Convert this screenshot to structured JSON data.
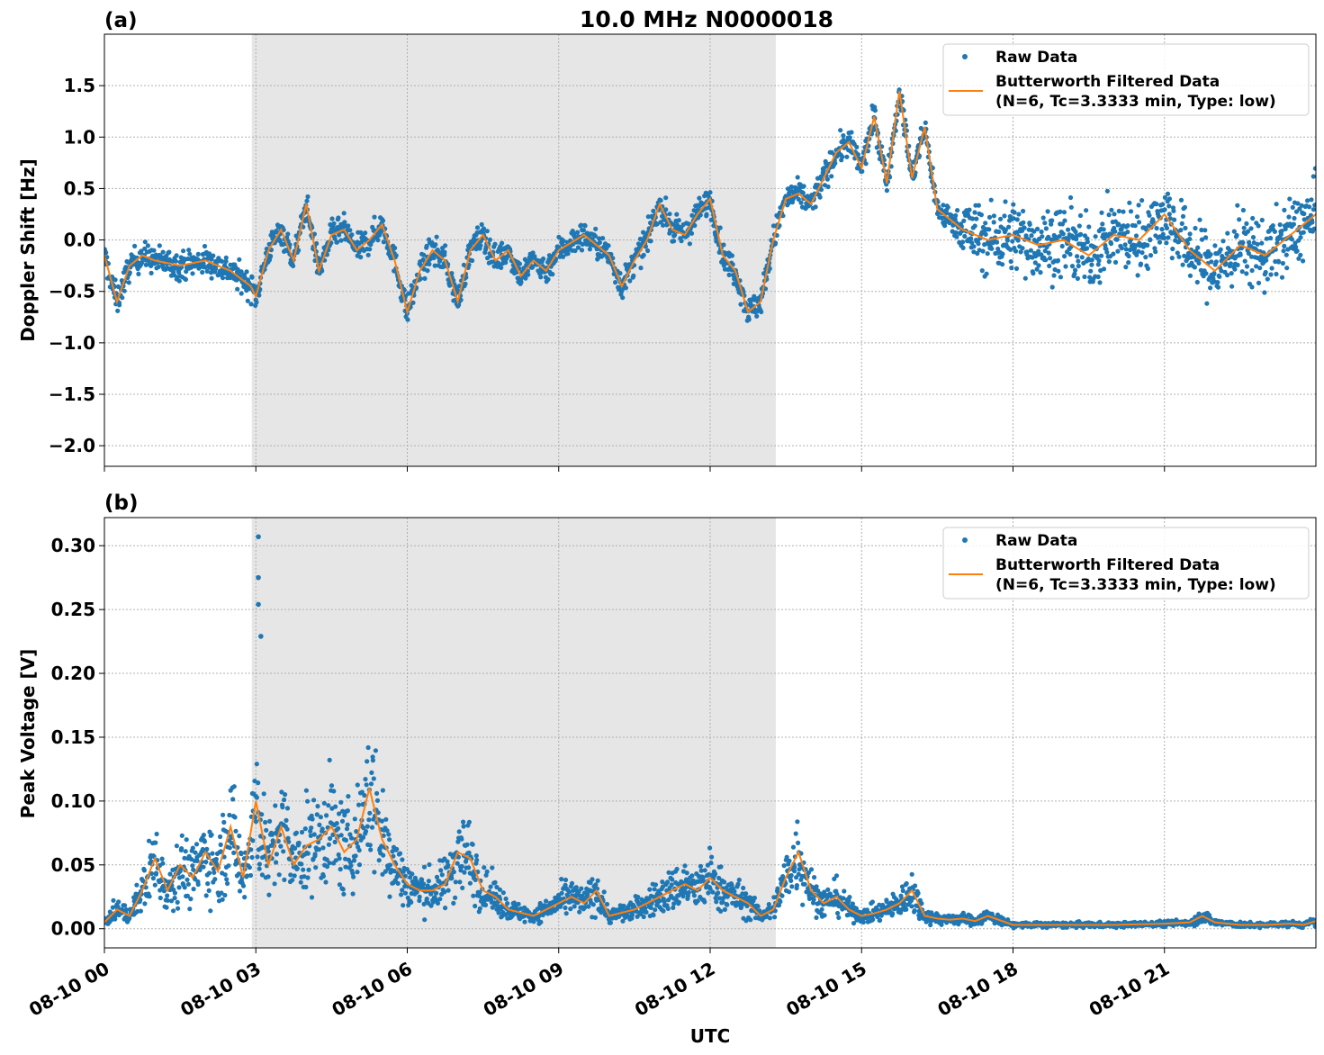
{
  "figure": {
    "title": "10.0 MHz N0000018",
    "xlabel": "UTC",
    "x_tick_labels": [
      "08-10 00",
      "08-10 03",
      "08-10 06",
      "08-10 09",
      "08-10 12",
      "08-10 15",
      "08-10 18",
      "08-10 21"
    ],
    "x_tick_hours": [
      0,
      3,
      6,
      9,
      12,
      15,
      18,
      21
    ],
    "x_range_hours": [
      0,
      24
    ],
    "shaded_interval_hours": [
      2.92,
      13.3
    ],
    "shade_color": "#e6e6e6",
    "raw_color": "#1f77b4",
    "filtered_color": "#ff7f0e"
  },
  "legend": {
    "raw_label": "Raw Data",
    "filtered_label_line1": "Butterworth Filtered Data",
    "filtered_label_line2": "(N=6, Tc=3.3333 min, Type: low)",
    "placement": "top-right"
  },
  "chart_data": [
    {
      "type": "scatter",
      "panel_label": "(a)",
      "ylabel": "Doppler Shift [Hz]",
      "ylim": [
        -2.2,
        2.0
      ],
      "y_ticks": [
        1.5,
        1.0,
        0.5,
        0.0,
        -0.5,
        -1.0,
        -1.5,
        -2.0
      ],
      "y_tick_labels": [
        "1.5",
        "1.0",
        "0.5",
        "0.0",
        "−0.5",
        "−1.0",
        "−1.5",
        "−2.0"
      ],
      "grid": true,
      "series": [
        {
          "name": "Raw Data",
          "kind": "scatter",
          "spread_note_hz": "about ±0.3 Hz before 17 UTC, about ±0.8 Hz after 17 UTC"
        },
        {
          "name": "Butterworth Filtered Data",
          "kind": "line",
          "x": [
            0,
            0.25,
            0.5,
            0.75,
            1.0,
            1.5,
            2.0,
            2.5,
            2.9,
            3.0,
            3.25,
            3.5,
            3.75,
            4.0,
            4.25,
            4.5,
            4.75,
            5.0,
            5.25,
            5.5,
            5.75,
            6.0,
            6.25,
            6.5,
            6.75,
            7.0,
            7.25,
            7.5,
            7.75,
            8.0,
            8.25,
            8.5,
            8.75,
            9.0,
            9.5,
            10.0,
            10.25,
            10.5,
            10.75,
            11.0,
            11.25,
            11.5,
            11.75,
            12.0,
            12.25,
            12.5,
            12.75,
            13.0,
            13.25,
            13.5,
            13.75,
            14.0,
            14.25,
            14.5,
            14.75,
            15.0,
            15.25,
            15.5,
            15.75,
            16.0,
            16.25,
            16.5,
            16.75,
            17.0,
            17.5,
            18.0,
            18.5,
            19.0,
            19.5,
            20.0,
            20.5,
            21.0,
            21.5,
            22.0,
            22.5,
            23.0,
            23.5,
            24.0
          ],
          "y": [
            -0.15,
            -0.6,
            -0.25,
            -0.15,
            -0.2,
            -0.25,
            -0.2,
            -0.3,
            -0.45,
            -0.55,
            -0.1,
            0.1,
            -0.2,
            0.35,
            -0.3,
            0.05,
            0.1,
            -0.1,
            0.0,
            0.15,
            -0.2,
            -0.7,
            -0.3,
            -0.1,
            -0.2,
            -0.6,
            -0.1,
            0.05,
            -0.2,
            -0.1,
            -0.35,
            -0.2,
            -0.3,
            -0.1,
            0.05,
            -0.15,
            -0.45,
            -0.2,
            0.0,
            0.35,
            0.1,
            0.05,
            0.25,
            0.4,
            -0.15,
            -0.3,
            -0.7,
            -0.6,
            0.0,
            0.4,
            0.45,
            0.35,
            0.6,
            0.85,
            0.95,
            0.7,
            1.2,
            0.55,
            1.45,
            0.6,
            1.1,
            0.3,
            0.2,
            0.1,
            0.0,
            0.05,
            -0.05,
            0.0,
            -0.15,
            0.05,
            0.0,
            0.25,
            -0.1,
            -0.3,
            -0.05,
            -0.15,
            0.05,
            0.25
          ]
        }
      ]
    },
    {
      "type": "scatter",
      "panel_label": "(b)",
      "ylabel": "Peak Voltage [V]",
      "ylim": [
        -0.015,
        0.322
      ],
      "y_ticks": [
        0.3,
        0.25,
        0.2,
        0.15,
        0.1,
        0.05,
        0.0
      ],
      "y_tick_labels": [
        "0.30",
        "0.25",
        "0.20",
        "0.15",
        "0.10",
        "0.05",
        "0.00"
      ],
      "grid": true,
      "series": [
        {
          "name": "Raw Data",
          "kind": "scatter",
          "outliers": [
            [
              3.05,
              0.307
            ],
            [
              3.05,
              0.275
            ],
            [
              3.05,
              0.254
            ],
            [
              3.1,
              0.229
            ]
          ]
        },
        {
          "name": "Butterworth Filtered Data",
          "kind": "line",
          "x": [
            0,
            0.25,
            0.5,
            0.75,
            1.0,
            1.25,
            1.5,
            1.75,
            2.0,
            2.25,
            2.5,
            2.75,
            3.0,
            3.25,
            3.5,
            3.75,
            4.0,
            4.25,
            4.5,
            4.75,
            5.0,
            5.25,
            5.5,
            5.75,
            6.0,
            6.25,
            6.5,
            6.75,
            7.0,
            7.25,
            7.5,
            7.75,
            8.0,
            8.5,
            9.0,
            9.25,
            9.5,
            9.75,
            10.0,
            10.5,
            11.0,
            11.25,
            11.5,
            11.75,
            12.0,
            12.25,
            12.5,
            12.75,
            13.0,
            13.25,
            13.5,
            13.75,
            14.0,
            14.25,
            14.5,
            14.75,
            15.0,
            15.25,
            15.5,
            15.75,
            16.0,
            16.25,
            16.5,
            16.75,
            17.0,
            17.25,
            17.5,
            18.0,
            19.0,
            20.0,
            21.0,
            21.5,
            21.75,
            22.0,
            22.5,
            23.0,
            23.5,
            23.75,
            24.0
          ],
          "y": [
            0.005,
            0.015,
            0.01,
            0.03,
            0.055,
            0.03,
            0.05,
            0.04,
            0.06,
            0.045,
            0.08,
            0.04,
            0.1,
            0.05,
            0.08,
            0.05,
            0.065,
            0.07,
            0.08,
            0.06,
            0.07,
            0.11,
            0.07,
            0.05,
            0.035,
            0.03,
            0.03,
            0.035,
            0.06,
            0.055,
            0.03,
            0.025,
            0.015,
            0.01,
            0.02,
            0.025,
            0.02,
            0.03,
            0.01,
            0.015,
            0.025,
            0.03,
            0.035,
            0.03,
            0.04,
            0.03,
            0.025,
            0.02,
            0.01,
            0.015,
            0.04,
            0.06,
            0.03,
            0.02,
            0.025,
            0.015,
            0.01,
            0.012,
            0.015,
            0.02,
            0.03,
            0.01,
            0.008,
            0.007,
            0.008,
            0.006,
            0.01,
            0.003,
            0.003,
            0.003,
            0.004,
            0.005,
            0.01,
            0.005,
            0.003,
            0.003,
            0.004,
            0.003,
            0.006
          ]
        }
      ]
    }
  ]
}
